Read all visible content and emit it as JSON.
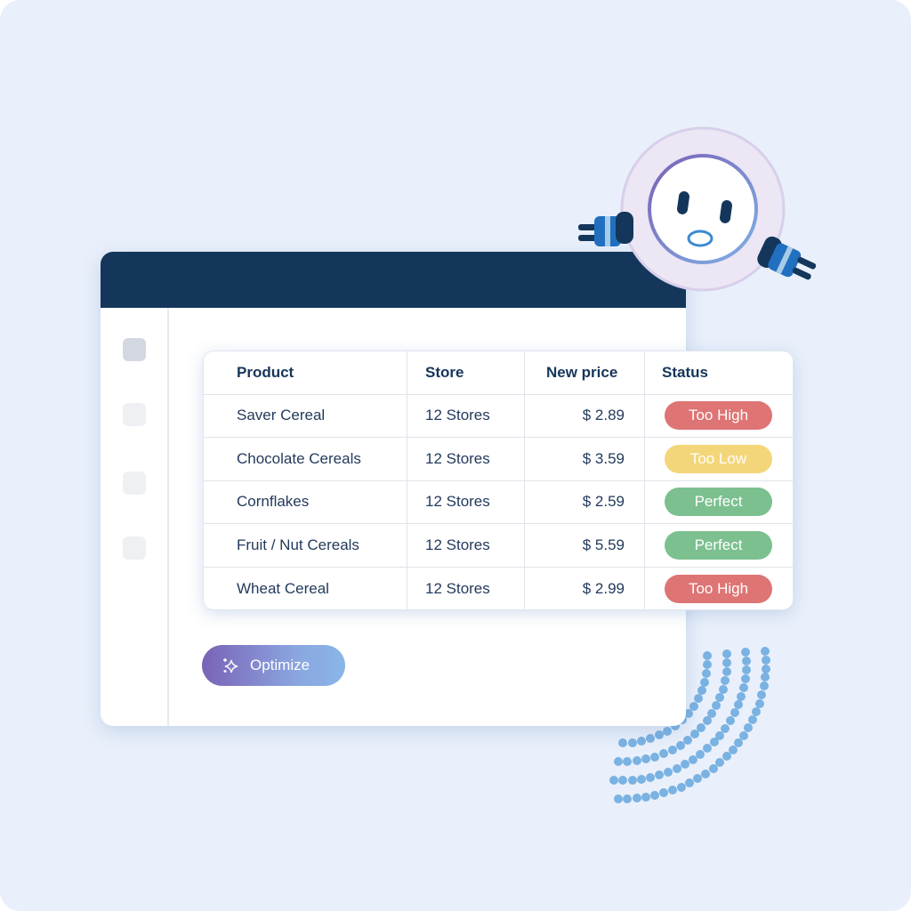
{
  "table": {
    "headers": [
      "Product",
      "Store",
      "New price",
      "Status"
    ],
    "rows": [
      {
        "product": "Saver Cereal",
        "store": "12 Stores",
        "price": "$ 2.89",
        "status": "Too High"
      },
      {
        "product": "Chocolate Cereals",
        "store": "12 Stores",
        "price": "$ 3.59",
        "status": "Too Low"
      },
      {
        "product": "Cornflakes",
        "store": "12 Stores",
        "price": "$ 2.59",
        "status": "Perfect"
      },
      {
        "product": "Fruit / Nut Cereals",
        "store": "12 Stores",
        "price": "$ 5.59",
        "status": "Perfect"
      },
      {
        "product": "Wheat Cereal",
        "store": "12 Stores",
        "price": "$ 2.99",
        "status": "Too High"
      }
    ]
  },
  "status_colors": {
    "Too High": "#de7474",
    "Too Low": "#f4d67a",
    "Perfect": "#7cc08f"
  },
  "optimize": {
    "label": "Optimize",
    "icon": "sparkles-icon"
  },
  "colors": {
    "window_header": "#14365a",
    "background": "#e9f0fb"
  }
}
